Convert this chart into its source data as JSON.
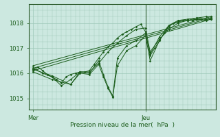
{
  "bg_color": "#cce8e0",
  "plot_bg_color": "#cce8e0",
  "line_color": "#1a5c1a",
  "grid_color": "#9dc8b8",
  "axis_color": "#2a5a2a",
  "xlabel": "Pression niveau de la mer(  hPa  )",
  "xlabel_color": "#1a5c1a",
  "xtick_labels": [
    "Mer",
    "Jeu"
  ],
  "xtick_positions": [
    0,
    24
  ],
  "ytick_labels": [
    "1015",
    "1016",
    "1017",
    "1018"
  ],
  "ytick_values": [
    1015,
    1016,
    1017,
    1018
  ],
  "ylim": [
    1014.55,
    1018.75
  ],
  "xlim": [
    -1,
    39
  ],
  "ver_line_x": 24,
  "series": [
    [
      0,
      1016.1,
      1,
      1016.25,
      2,
      1016.1,
      3,
      1015.95,
      4,
      1015.85,
      5,
      1015.75,
      6,
      1015.6,
      7,
      1015.85,
      8,
      1015.95,
      9,
      1016.0,
      10,
      1016.05,
      11,
      1016.05,
      12,
      1016.1,
      13,
      1016.35,
      14,
      1016.6,
      15,
      1016.85,
      16,
      1017.05,
      17,
      1017.2,
      18,
      1017.4,
      19,
      1017.55,
      20,
      1017.65,
      21,
      1017.75,
      22,
      1017.85,
      23,
      1017.95,
      24,
      1017.65,
      25,
      1016.7,
      26,
      1017.0,
      27,
      1017.3,
      28,
      1017.6,
      29,
      1017.85,
      30,
      1018.0,
      31,
      1018.05,
      32,
      1018.1,
      33,
      1018.1,
      34,
      1018.1,
      35,
      1018.15,
      36,
      1018.15,
      37,
      1018.15,
      38,
      1018.2
    ],
    [
      0,
      1016.2,
      2,
      1016.0,
      4,
      1015.85,
      6,
      1015.5,
      8,
      1015.75,
      10,
      1016.05,
      12,
      1016.05,
      14,
      1016.4,
      16,
      1016.85,
      18,
      1017.2,
      20,
      1017.5,
      22,
      1017.75,
      24,
      1017.8,
      25,
      1016.85,
      27,
      1017.35,
      29,
      1017.75,
      31,
      1018.0,
      33,
      1018.1,
      35,
      1018.2,
      37,
      1018.25,
      38,
      1018.25
    ],
    [
      0,
      1016.05,
      4,
      1015.75,
      8,
      1015.55,
      10,
      1016.0,
      12,
      1015.95,
      14,
      1016.35,
      15,
      1015.85,
      16,
      1015.4,
      17,
      1015.05,
      18,
      1016.3,
      20,
      1016.9,
      22,
      1017.1,
      24,
      1017.5,
      25,
      1016.5,
      27,
      1017.3,
      29,
      1017.9,
      31,
      1018.05,
      33,
      1018.1,
      35,
      1018.15,
      37,
      1018.1,
      38,
      1018.15
    ],
    [
      0,
      1016.15,
      4,
      1015.9,
      8,
      1015.55,
      10,
      1016.05,
      12,
      1016.0,
      14,
      1016.5,
      15,
      1015.95,
      16,
      1015.45,
      17,
      1015.1,
      18,
      1016.6,
      20,
      1017.1,
      22,
      1017.3,
      24,
      1017.6,
      25,
      1016.75,
      27,
      1017.45,
      29,
      1017.9,
      31,
      1018.1,
      33,
      1018.15,
      35,
      1018.2,
      37,
      1018.15,
      38,
      1018.2
    ],
    [
      0,
      1016.3,
      38,
      1018.25
    ],
    [
      0,
      1016.1,
      38,
      1018.15
    ],
    [
      0,
      1016.2,
      38,
      1018.2
    ]
  ]
}
